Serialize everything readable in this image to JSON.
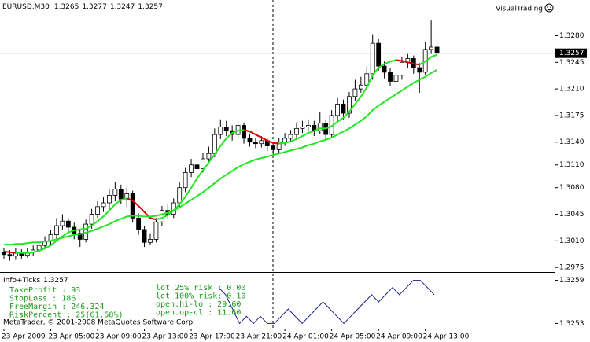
{
  "chart_data": [
    {
      "type": "candlestick",
      "title": "EURUSD,M30",
      "badge": "VisualTrading",
      "categories": [
        "23 Apr 2009",
        null,
        null,
        null,
        null,
        null,
        null,
        null,
        "23 Apr 05:00",
        null,
        null,
        null,
        null,
        null,
        null,
        null,
        "23 Apr 09:00",
        null,
        null,
        null,
        null,
        null,
        null,
        null,
        "23 Apr 13:00",
        null,
        null,
        null,
        null,
        null,
        null,
        null,
        "23 Apr 17:00",
        null,
        null,
        null,
        null,
        null,
        null,
        null,
        "23 Apr 21:00",
        null,
        null,
        null,
        null,
        null,
        null,
        null,
        "24 Apr 01:00",
        null,
        null,
        null,
        null,
        null,
        null,
        null,
        "24 Apr 05:00",
        null,
        null,
        null,
        null,
        null,
        null,
        null,
        "24 Apr 09:00",
        null,
        null,
        null,
        null,
        null,
        null,
        null,
        "24 Apr 13:00",
        null,
        null
      ],
      "open": [
        1.2995,
        1.2992,
        1.299,
        1.2994,
        1.2991,
        1.2995,
        1.2998,
        1.3004,
        1.301,
        1.3018,
        1.303,
        1.3036,
        1.3028,
        1.302,
        1.3012,
        1.3032,
        1.3045,
        1.3055,
        1.306,
        1.307,
        1.3078,
        1.3065,
        1.3072,
        1.304,
        1.3025,
        1.3008,
        1.3012,
        1.3035,
        1.305,
        1.3045,
        1.306,
        1.308,
        1.31,
        1.311,
        1.3105,
        1.3118,
        1.3125,
        1.315,
        1.316,
        1.3155,
        1.315,
        1.3162,
        1.3145,
        1.314,
        1.3138,
        1.3142,
        1.3135,
        1.313,
        1.314,
        1.3145,
        1.315,
        1.3158,
        1.316,
        1.3162,
        1.3155,
        1.3165,
        1.315,
        1.3175,
        1.319,
        1.3178,
        1.32,
        1.321,
        1.3215,
        1.323,
        1.327,
        1.324,
        1.3232,
        1.322,
        1.3228,
        1.3245,
        1.325,
        1.3238,
        1.3232,
        1.3262,
        1.3265
      ],
      "high": [
        1.3001,
        1.2998,
        1.3,
        1.2999,
        1.3001,
        1.3004,
        1.301,
        1.3016,
        1.3024,
        1.304,
        1.3045,
        1.304,
        1.3034,
        1.3026,
        1.3038,
        1.3052,
        1.3062,
        1.3068,
        1.3078,
        1.3088,
        1.3084,
        1.308,
        1.3076,
        1.3046,
        1.303,
        1.302,
        1.304,
        1.3056,
        1.3058,
        1.3066,
        1.3088,
        1.3106,
        1.3118,
        1.3116,
        1.3126,
        1.3134,
        1.3158,
        1.317,
        1.3168,
        1.3162,
        1.3168,
        1.3166,
        1.315,
        1.3146,
        1.3148,
        1.3146,
        1.314,
        1.3146,
        1.3152,
        1.3156,
        1.3166,
        1.3168,
        1.317,
        1.3168,
        1.318,
        1.317,
        1.3182,
        1.3198,
        1.3196,
        1.3206,
        1.3222,
        1.3226,
        1.324,
        1.3282,
        1.3276,
        1.3246,
        1.3238,
        1.3236,
        1.3252,
        1.3256,
        1.3254,
        1.3244,
        1.3272,
        1.33,
        1.3277
      ],
      "low": [
        1.2986,
        1.2984,
        1.2985,
        1.2986,
        1.2988,
        1.299,
        1.2994,
        1.3,
        1.3005,
        1.3012,
        1.3025,
        1.302,
        1.3012,
        1.3002,
        1.3008,
        1.3026,
        1.304,
        1.3048,
        1.3052,
        1.3062,
        1.3058,
        1.3055,
        1.3034,
        1.3018,
        1.3002,
        1.3004,
        1.3008,
        1.303,
        1.3038,
        1.304,
        1.3055,
        1.3074,
        1.3094,
        1.3098,
        1.31,
        1.3112,
        1.312,
        1.3144,
        1.3148,
        1.3142,
        1.3145,
        1.3138,
        1.3134,
        1.3132,
        1.3133,
        1.3128,
        1.3122,
        1.3126,
        1.3135,
        1.314,
        1.3145,
        1.3152,
        1.3154,
        1.3148,
        1.315,
        1.3144,
        1.3146,
        1.3168,
        1.317,
        1.3172,
        1.3194,
        1.3205,
        1.3208,
        1.3222,
        1.3234,
        1.3224,
        1.3214,
        1.3216,
        1.3222,
        1.3238,
        1.323,
        1.3205,
        1.3228,
        1.3256,
        1.3247
      ],
      "close": [
        1.2992,
        1.299,
        1.2994,
        1.2991,
        1.2995,
        1.2998,
        1.3004,
        1.301,
        1.3018,
        1.303,
        1.3036,
        1.3028,
        1.302,
        1.3012,
        1.3032,
        1.3045,
        1.3055,
        1.306,
        1.307,
        1.3078,
        1.3065,
        1.3072,
        1.304,
        1.3025,
        1.3008,
        1.3012,
        1.3035,
        1.305,
        1.3045,
        1.306,
        1.308,
        1.31,
        1.311,
        1.3105,
        1.3118,
        1.3125,
        1.315,
        1.316,
        1.3155,
        1.315,
        1.3162,
        1.3145,
        1.314,
        1.3138,
        1.3142,
        1.3135,
        1.313,
        1.314,
        1.3145,
        1.315,
        1.3158,
        1.316,
        1.3162,
        1.3155,
        1.3165,
        1.315,
        1.3175,
        1.319,
        1.3178,
        1.32,
        1.321,
        1.3215,
        1.323,
        1.327,
        1.324,
        1.3232,
        1.322,
        1.3228,
        1.3245,
        1.325,
        1.3238,
        1.3232,
        1.3262,
        1.3265,
        1.3257
      ],
      "up_color": "#ffffff",
      "down_color": "#000000",
      "edge_color": "#000000",
      "overlays": [
        {
          "color": "#22e622",
          "down_color": "#e00000",
          "values": [
            1.2996,
            1.2995,
            1.2994,
            1.2994,
            1.2994,
            1.2995,
            1.2997,
            1.3,
            1.3004,
            1.301,
            1.3016,
            1.3021,
            1.3024,
            1.3025,
            1.3026,
            1.303,
            1.3036,
            1.3042,
            1.305,
            1.3058,
            1.3064,
            1.3066,
            1.3063,
            1.3056,
            1.3048,
            1.304,
            1.3038,
            1.304,
            1.3044,
            1.305,
            1.3058,
            1.3068,
            1.308,
            1.3092,
            1.3103,
            1.3113,
            1.3124,
            1.3135,
            1.3145,
            1.3152,
            1.3155,
            1.3156,
            1.3154,
            1.315,
            1.3146,
            1.3142,
            1.3139,
            1.3138,
            1.3139,
            1.3141,
            1.3144,
            1.3148,
            1.3152,
            1.3155,
            1.3158,
            1.3158,
            1.3161,
            1.3167,
            1.3172,
            1.318,
            1.319,
            1.32,
            1.3212,
            1.3228,
            1.3238,
            1.3243,
            1.3246,
            1.3248,
            1.3247,
            1.3245,
            1.3243,
            1.3242,
            1.3246,
            1.3252,
            1.3255
          ]
        },
        {
          "color": "#22e622",
          "values": [
            1.3005,
            1.3005,
            1.3006,
            1.3006,
            1.3007,
            1.3008,
            1.3008,
            1.3009,
            1.301,
            1.3012,
            1.3014,
            1.3016,
            1.3018,
            1.3019,
            1.3021,
            1.3023,
            1.3026,
            1.3029,
            1.3032,
            1.3036,
            1.3039,
            1.3042,
            1.3043,
            1.3043,
            1.3042,
            1.3042,
            1.3043,
            1.3045,
            1.3047,
            1.305,
            1.3054,
            1.3059,
            1.3064,
            1.3069,
            1.3074,
            1.308,
            1.3086,
            1.3092,
            1.3097,
            1.3102,
            1.3107,
            1.3111,
            1.3114,
            1.3117,
            1.3119,
            1.3121,
            1.3123,
            1.3125,
            1.3127,
            1.3129,
            1.3131,
            1.3133,
            1.3136,
            1.3138,
            1.3141,
            1.3143,
            1.3146,
            1.315,
            1.3154,
            1.3158,
            1.3163,
            1.3168,
            1.3174,
            1.3182,
            1.3188,
            1.3193,
            1.3198,
            1.3203,
            1.3208,
            1.3213,
            1.3218,
            1.3222,
            1.3226,
            1.3231,
            1.3235
          ]
        }
      ],
      "ylim": [
        1.297,
        1.3325
      ],
      "yticks": [
        {
          "value": 1.328,
          "label": "1.3280"
        },
        1.3245,
        {
          "value": 1.321,
          "label": "1.3210"
        },
        1.3175,
        {
          "value": 1.314,
          "label": "1.3140"
        },
        {
          "value": 1.311,
          "label": "1.3110"
        },
        {
          "value": 1.308,
          "label": "1.3080"
        },
        1.3045,
        {
          "value": 1.301,
          "label": "1.3010"
        },
        1.2975
      ]
    },
    {
      "type": "line",
      "title": "Info+Ticks",
      "color": "#1c1c8c",
      "values": [
        1.3258,
        1.3257,
        1.3255,
        1.3253,
        1.3254,
        1.3253,
        1.3254,
        1.3253,
        1.3253,
        1.3254,
        1.3255,
        1.3254,
        1.3253,
        1.3254,
        1.3255,
        1.3256,
        1.3255,
        1.3254,
        1.3253,
        1.3254,
        1.3255,
        1.3256,
        1.3257,
        1.3256,
        1.3257,
        1.3258,
        1.3257,
        1.3258,
        1.3259,
        1.3259,
        1.3258,
        1.3257
      ],
      "ylim": [
        1.32525,
        1.32595
      ],
      "yticks": [
        1.3259,
        1.3253
      ],
      "annotations_left": [
        "TakeProfit : 93",
        "StopLoss : 186",
        "FreeMargin : 246.324",
        "RiskPercent : 25(61.58%)"
      ],
      "annotations_right": [
        "lot 25% risk : 0.00",
        "lot 100% risk: 0.10",
        "open.hi-lo : 29.60",
        "open.op-cl : 11.60"
      ],
      "footer": "MetaTrader, © 2001-2008 MetaQuotes Software Corp."
    }
  ]
}
